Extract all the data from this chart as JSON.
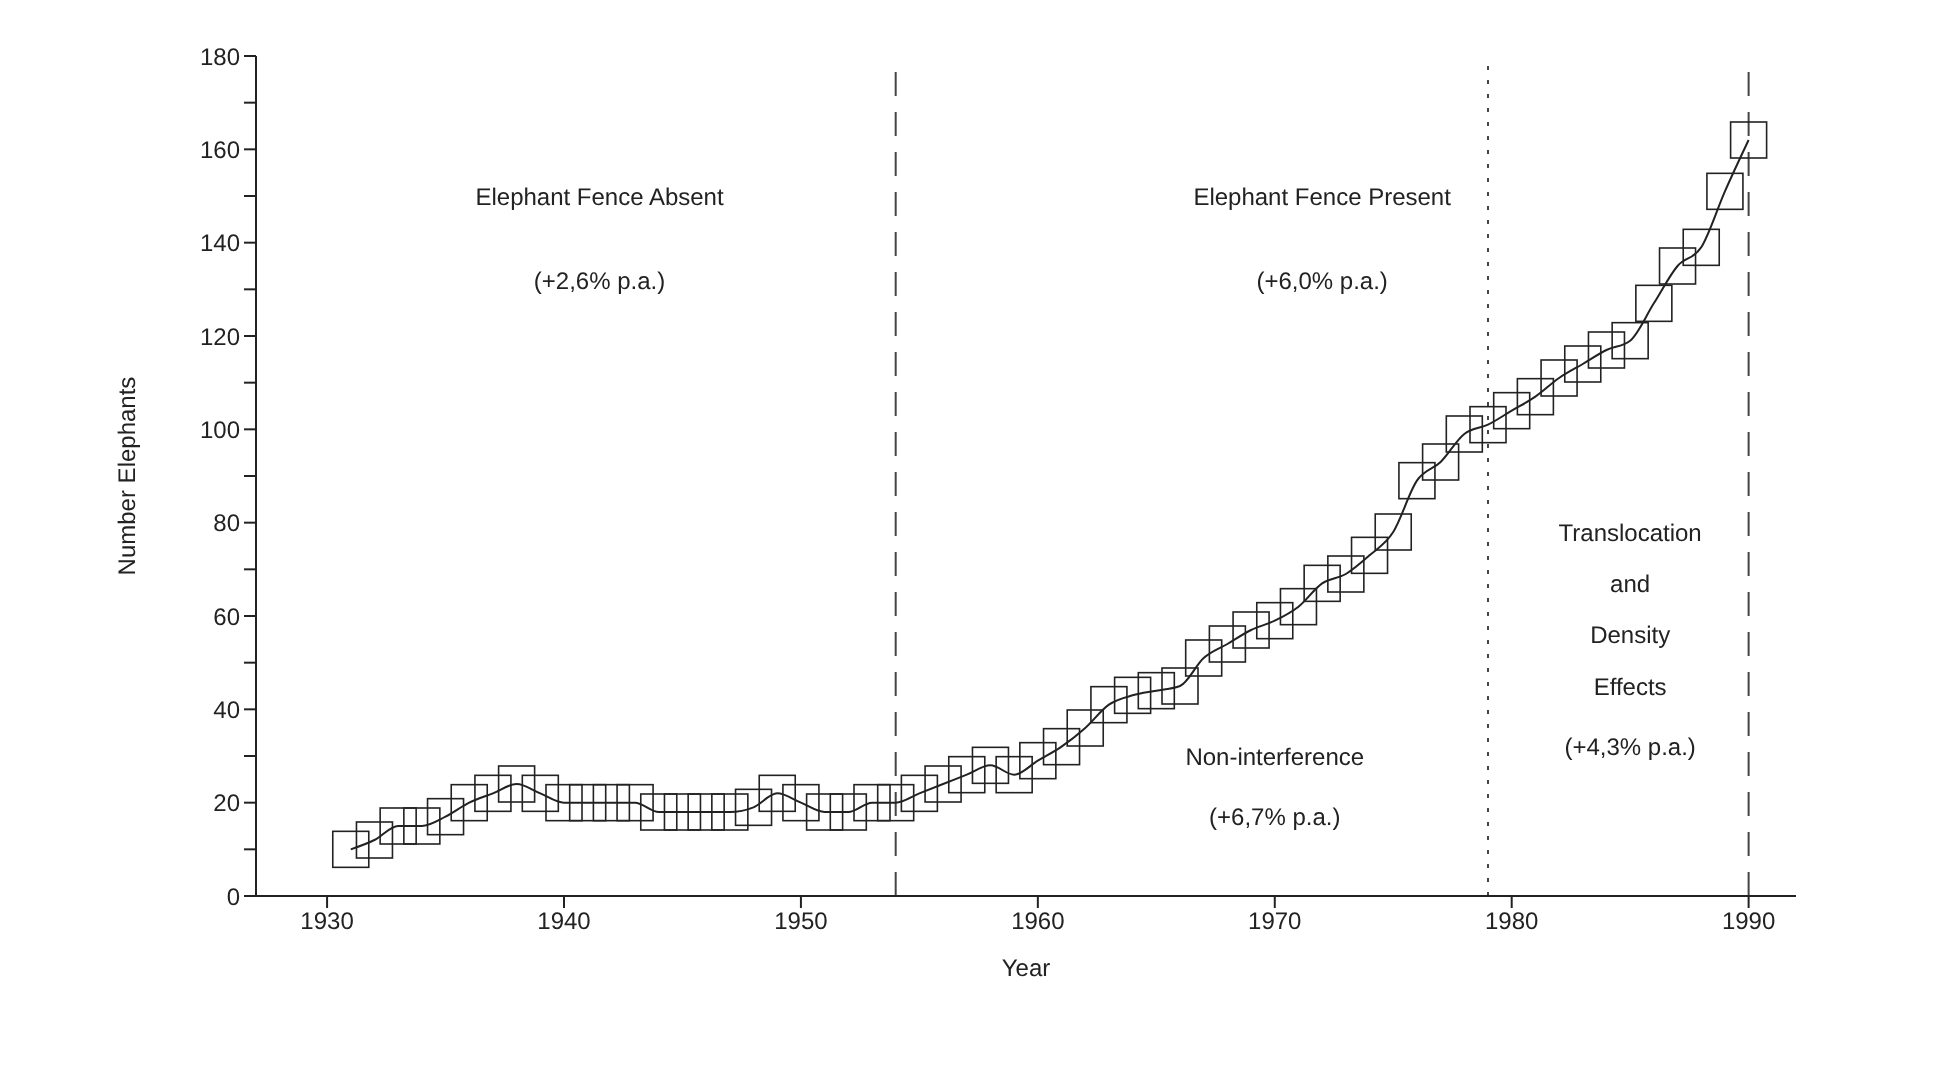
{
  "chart_data": {
    "type": "line",
    "xlabel": "Year",
    "ylabel": "Number Elephants",
    "x": [
      1931,
      1932,
      1933,
      1934,
      1935,
      1936,
      1937,
      1938,
      1939,
      1940,
      1941,
      1942,
      1943,
      1944,
      1945,
      1946,
      1947,
      1948,
      1949,
      1950,
      1951,
      1952,
      1953,
      1954,
      1955,
      1956,
      1957,
      1958,
      1959,
      1960,
      1961,
      1962,
      1963,
      1964,
      1965,
      1966,
      1967,
      1968,
      1969,
      1970,
      1971,
      1972,
      1973,
      1974,
      1975,
      1976,
      1977,
      1978,
      1979,
      1980,
      1981,
      1982,
      1983,
      1984,
      1985,
      1986,
      1987,
      1988,
      1989,
      1990
    ],
    "series": [
      {
        "color": "#222222",
        "values": [
          10,
          12,
          15,
          15,
          17,
          20,
          22,
          24,
          22,
          20,
          20,
          20,
          20,
          18,
          18,
          18,
          18,
          19,
          22,
          20,
          18,
          18,
          20,
          20,
          22,
          24,
          26,
          28,
          26,
          29,
          32,
          36,
          41,
          43,
          44,
          45,
          51,
          54,
          57,
          59,
          62,
          67,
          69,
          73,
          78,
          89,
          93,
          99,
          101,
          104,
          107,
          111,
          114,
          117,
          119,
          127,
          135,
          139,
          151,
          162
        ]
      }
    ],
    "marker": "square",
    "line_style": "solid",
    "xlim": [
      1927,
      1992
    ],
    "xticks": [
      1930,
      1940,
      1950,
      1960,
      1970,
      1980,
      1990
    ],
    "ylim": [
      0,
      180
    ],
    "yticks": [
      0,
      {
        "value": 10,
        "label": null
      },
      20,
      {
        "value": 30,
        "label": null
      },
      40,
      {
        "value": 50,
        "label": null
      },
      60,
      {
        "value": 70,
        "label": null
      },
      80,
      {
        "value": 90,
        "label": null
      },
      100,
      {
        "value": 110,
        "label": null
      },
      120,
      {
        "value": 130,
        "label": null
      },
      140,
      {
        "value": 150,
        "label": null
      },
      160,
      {
        "value": 170,
        "label": null
      },
      180
    ],
    "ref_lines": [
      {
        "axis": "x",
        "value": 1954,
        "line_style": "dashed",
        "color": "#444444"
      },
      {
        "axis": "x",
        "value": 1990,
        "line_style": "dashed",
        "color": "#444444"
      },
      {
        "axis": "x",
        "value": 1979,
        "line_style": "dotted",
        "color": "#444444"
      }
    ],
    "annotations": [
      "Elephant Fence Absent",
      "(+2,6% p.a.)",
      "Elephant Fence Present",
      "(+6,0% p.a.)",
      "Non-interference",
      "(+6,7% p.a.)",
      "Translocation",
      "and",
      "Density",
      "Effects",
      "(+4,3% p.a.)"
    ]
  }
}
